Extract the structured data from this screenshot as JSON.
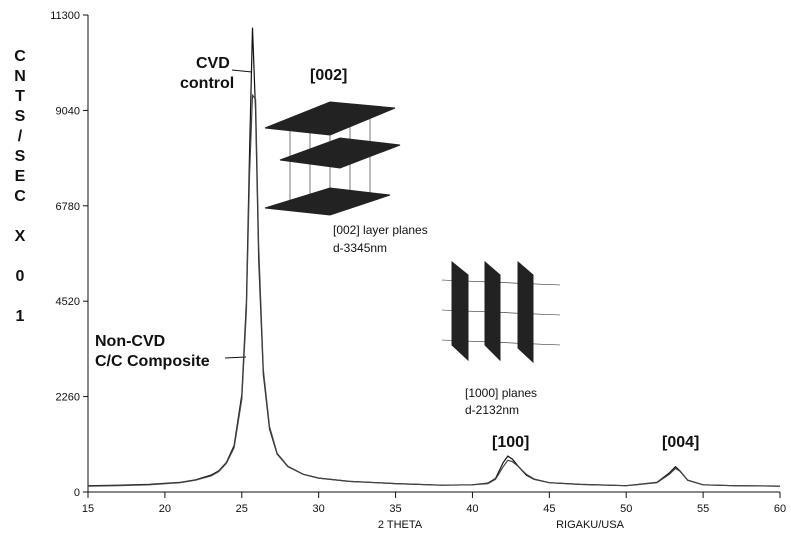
{
  "chart_data": {
    "type": "line",
    "y_label": "CNTS/SEC X 0 1",
    "x_label": "2 THETA",
    "note": "RIGAKU/USA",
    "annotations": [
      "CVD",
      "control",
      "[002]",
      "[002] layer planes",
      "d-3345nm",
      "Non-CVD",
      "C/C Composite",
      "[1000] planes",
      "d-2132nm",
      "[100]",
      "[004]"
    ],
    "x": [
      15,
      17,
      19,
      21,
      22,
      23,
      23.5,
      24,
      24.5,
      25,
      25.3,
      25.5,
      25.7,
      25.9,
      26.1,
      26.4,
      26.8,
      27.3,
      28,
      29,
      30,
      32,
      35,
      38,
      40,
      41,
      41.5,
      42,
      42.3,
      42.6,
      43,
      43.5,
      44,
      45,
      47,
      50,
      52,
      52.8,
      53.2,
      53.5,
      54,
      55,
      57,
      60
    ],
    "series": [
      {
        "color": "#111111",
        "values": [
          150,
          160,
          180,
          230,
          290,
          400,
          500,
          700,
          1100,
          2300,
          4500,
          8000,
          11000,
          9000,
          5500,
          2800,
          1500,
          900,
          600,
          420,
          330,
          250,
          200,
          160,
          170,
          210,
          320,
          700,
          850,
          780,
          600,
          400,
          300,
          220,
          180,
          150,
          230,
          450,
          600,
          500,
          280,
          170,
          150,
          140
        ]
      },
      {
        "color": "#444444",
        "values": [
          140,
          150,
          170,
          220,
          280,
          380,
          480,
          680,
          1050,
          2200,
          4300,
          7500,
          9400,
          9300,
          5800,
          2900,
          1550,
          920,
          610,
          420,
          330,
          250,
          200,
          160,
          170,
          200,
          300,
          600,
          750,
          720,
          600,
          420,
          310,
          220,
          180,
          150,
          220,
          420,
          560,
          490,
          280,
          170,
          150,
          140
        ]
      }
    ],
    "xlim": [
      15,
      60
    ],
    "xticks": [
      15,
      20,
      25,
      30,
      35,
      40,
      45,
      50,
      55,
      60
    ],
    "ylim": [
      0,
      11300
    ],
    "yticks": [
      0,
      2260,
      4520,
      6780,
      9040,
      11300
    ]
  }
}
